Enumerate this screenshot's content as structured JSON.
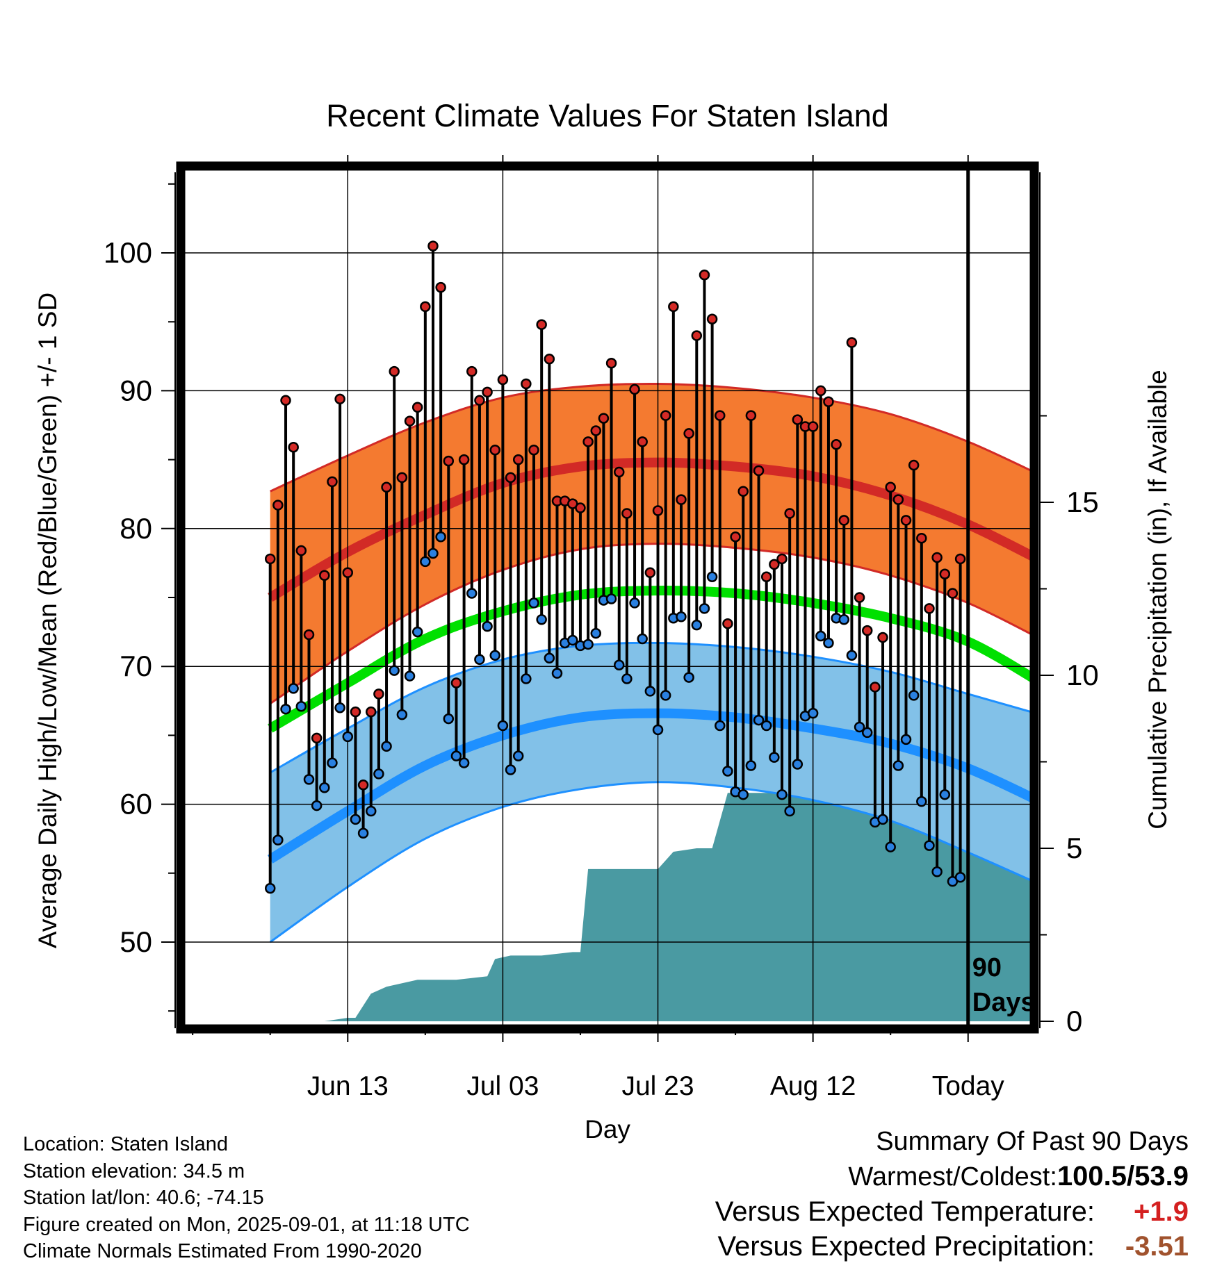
{
  "chart_data": {
    "type": "line",
    "title": "Recent Climate Values For Staten Island",
    "xlabel": "Day",
    "ylabel": "Average Daily High/Low/Mean (Red/Blue/Green) +/- 1 SD",
    "y2label": "Cumulative Precipitation (in), If Available",
    "ylim": [
      44,
      106
    ],
    "y2lim": [
      0,
      20
    ],
    "yticks": [
      50,
      60,
      70,
      80,
      90,
      100
    ],
    "y2ticks": [
      0,
      5,
      10,
      15
    ],
    "xlim": [
      -10,
      99
    ],
    "xtick_days": [
      11,
      31,
      51,
      71,
      91
    ],
    "xtick_labels": [
      "Jun 13",
      "Jul 03",
      "Jul 23",
      "Aug 12",
      "Today"
    ],
    "today_day": 91,
    "today_label": [
      "90",
      "Days"
    ],
    "grid": true,
    "colors": {
      "high_band": "#f47a30",
      "high_line": "#d22a26",
      "low_band": "#82c1e8",
      "low_line": "#1e90ff",
      "mean_line": "#00e000",
      "precip": "#4a9aa2",
      "high_marker": "#d42a26",
      "low_marker": "#2a80e0"
    },
    "normals": {
      "days": [
        1,
        11,
        21,
        31,
        41,
        51,
        61,
        71,
        81,
        91,
        101
      ],
      "high_mean": [
        75.0,
        78.3,
        81.0,
        83.3,
        84.5,
        84.8,
        84.5,
        83.8,
        82.4,
        80.3,
        77.5
      ],
      "high_sd_upper": [
        82.7,
        85.3,
        87.7,
        89.5,
        90.3,
        90.5,
        90.2,
        89.5,
        88.3,
        86.3,
        83.7
      ],
      "high_sd_lower": [
        67.3,
        71.1,
        74.5,
        77.0,
        78.5,
        78.9,
        78.6,
        77.9,
        76.6,
        74.6,
        71.8
      ],
      "mean": [
        65.5,
        68.8,
        72.0,
        74.0,
        75.2,
        75.5,
        75.3,
        74.6,
        73.5,
        71.8,
        68.6
      ],
      "low_mean": [
        56.0,
        59.5,
        62.8,
        65.0,
        66.3,
        66.6,
        66.3,
        65.5,
        64.4,
        62.6,
        60.0
      ],
      "low_sd_upper": [
        62.3,
        65.5,
        68.5,
        70.5,
        71.5,
        71.7,
        71.4,
        70.7,
        69.6,
        68.0,
        66.4
      ],
      "low_sd_lower": [
        50.0,
        54.0,
        57.5,
        59.8,
        61.1,
        61.6,
        61.2,
        60.3,
        58.8,
        56.5,
        54.0
      ]
    },
    "precip_cumulative": {
      "x": [
        1,
        8,
        11,
        12,
        14,
        16,
        18,
        20,
        22,
        25,
        29,
        30,
        32,
        36,
        40,
        41,
        42,
        50,
        51,
        53,
        56,
        58,
        60,
        67,
        70,
        71,
        72,
        75,
        77,
        79,
        80,
        82,
        100
      ],
      "y": [
        0.0,
        0.0,
        0.1,
        0.1,
        0.8,
        1.0,
        1.1,
        1.2,
        1.2,
        1.2,
        1.3,
        1.8,
        1.9,
        1.9,
        2.0,
        2.0,
        4.4,
        4.4,
        4.4,
        4.9,
        5.0,
        5.0,
        6.6,
        6.6,
        6.6,
        6.6,
        7.2,
        7.2,
        7.3,
        7.4,
        7.4,
        8.4,
        8.4
      ]
    },
    "daily": {
      "days": [
        1,
        2,
        3,
        4,
        5,
        6,
        7,
        8,
        9,
        10,
        11,
        12,
        13,
        14,
        15,
        16,
        17,
        18,
        19,
        20,
        21,
        22,
        23,
        24,
        25,
        26,
        27,
        28,
        29,
        30,
        31,
        32,
        33,
        34,
        35,
        36,
        37,
        38,
        39,
        40,
        41,
        42,
        43,
        44,
        45,
        46,
        47,
        48,
        49,
        50,
        51,
        52,
        53,
        54,
        55,
        56,
        57,
        58,
        59,
        60,
        61,
        62,
        63,
        64,
        65,
        66,
        67,
        68,
        69,
        70,
        71,
        72,
        73,
        74,
        75,
        76,
        77,
        78,
        79,
        80,
        81,
        82,
        83,
        84,
        85,
        86,
        87,
        88,
        89,
        90
      ],
      "high": [
        77.8,
        81.7,
        89.3,
        85.9,
        78.4,
        72.3,
        64.8,
        76.6,
        83.4,
        89.4,
        76.8,
        66.7,
        61.4,
        66.7,
        68.0,
        83.0,
        91.4,
        83.7,
        87.8,
        88.8,
        96.1,
        100.5,
        97.5,
        84.9,
        68.8,
        85.0,
        91.4,
        89.3,
        89.9,
        85.7,
        90.8,
        83.7,
        85.0,
        90.5,
        85.7,
        94.8,
        92.3,
        82.0,
        82.0,
        81.8,
        81.5,
        86.3,
        87.1,
        88.0,
        92.0,
        84.1,
        81.1,
        90.1,
        86.3,
        76.8,
        81.3,
        88.2,
        96.1,
        82.1,
        86.9,
        94.0,
        98.4,
        95.2,
        88.2,
        73.1,
        79.4,
        82.7,
        88.2,
        84.2,
        76.5,
        77.4,
        77.8,
        81.1,
        87.9,
        87.4,
        87.4,
        90.0,
        89.2,
        86.1,
        80.6,
        93.5,
        75.0,
        72.6,
        68.5,
        72.1,
        83.0,
        82.1,
        80.6,
        84.6,
        79.3,
        74.2,
        77.9,
        76.7,
        75.3,
        77.8
      ],
      "low": [
        53.9,
        57.4,
        66.9,
        68.4,
        67.1,
        61.8,
        59.9,
        61.2,
        63.0,
        67.0,
        64.9,
        58.9,
        57.9,
        59.5,
        62.2,
        64.2,
        69.7,
        66.5,
        69.3,
        72.5,
        77.6,
        78.2,
        79.4,
        66.2,
        63.5,
        63.0,
        75.3,
        70.5,
        72.9,
        70.8,
        65.7,
        62.5,
        63.5,
        69.1,
        74.6,
        73.4,
        70.6,
        69.5,
        71.7,
        71.9,
        71.5,
        71.6,
        72.4,
        74.8,
        74.9,
        70.1,
        69.1,
        74.6,
        72.0,
        68.2,
        65.4,
        67.9,
        73.5,
        73.6,
        69.2,
        73.0,
        74.2,
        76.5,
        65.7,
        62.4,
        60.9,
        60.7,
        62.8,
        66.1,
        65.7,
        63.4,
        60.7,
        59.5,
        62.9,
        66.4,
        66.6,
        72.2,
        71.7,
        73.5,
        73.4,
        70.8,
        65.6,
        65.2,
        58.7,
        58.9,
        56.9,
        62.8,
        64.7,
        67.9,
        60.2,
        57.0,
        55.1,
        60.7,
        54.4,
        54.7
      ]
    }
  },
  "footer": {
    "location": "Location: Staten Island",
    "elevation": "Station elevation: 34.5 m",
    "latlon": "Station lat/lon: 40.6; -74.15",
    "created": "Figure created on Mon, 2025-09-01, at 11:18 UTC",
    "normals": "Climate Normals Estimated From 1990-2020"
  },
  "summary": {
    "header": "Summary Of Past 90 Days",
    "warm_cold_label": "Warmest/Coldest:",
    "warm_cold_value": "100.5/53.9",
    "temp_label": "Versus Expected Temperature:",
    "temp_value": "+1.9",
    "precip_label": "Versus Expected Precipitation:",
    "precip_value": "-3.51"
  }
}
